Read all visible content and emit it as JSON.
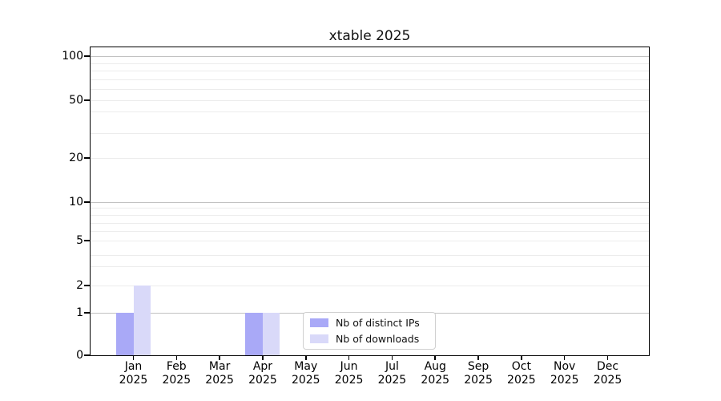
{
  "chart_data": {
    "type": "bar",
    "title": "xtable 2025",
    "xlabel": "",
    "ylabel": "",
    "categories": [
      "Jan",
      "Feb",
      "Mar",
      "Apr",
      "May",
      "Jun",
      "Jul",
      "Aug",
      "Sep",
      "Oct",
      "Nov",
      "Dec"
    ],
    "category_year": "2025",
    "series": [
      {
        "name": "Nb of distinct IPs",
        "color": "#a9a9f7",
        "values": [
          1,
          0,
          0,
          1,
          0,
          0,
          0,
          0,
          0,
          0,
          0,
          0
        ]
      },
      {
        "name": "Nb of downloads",
        "color": "#d9d9f9",
        "values": [
          2,
          0,
          0,
          1,
          0,
          0,
          0,
          0,
          0,
          0,
          0,
          0
        ]
      }
    ],
    "yaxis": {
      "scale": "log-with-zero-baseline",
      "range": [
        0,
        100
      ],
      "ticks": [
        0,
        1,
        2,
        5,
        10,
        20,
        50,
        100
      ],
      "major_gridlines": [
        1,
        10,
        100
      ],
      "minor_gridlines": [
        2,
        3,
        4,
        5,
        6,
        7,
        8,
        9,
        20,
        30,
        40,
        50,
        60,
        70,
        80,
        90
      ]
    },
    "grid": "horizontal",
    "legend": {
      "position": "bottom-center-inside",
      "entries": [
        "Nb of distinct IPs",
        "Nb of downloads"
      ]
    }
  }
}
